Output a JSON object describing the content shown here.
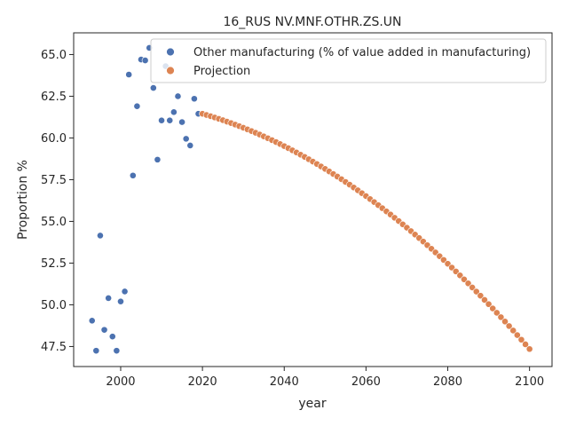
{
  "chart_data": {
    "type": "scatter",
    "title": "16_RUS NV.MNF.OTHR.ZS.UN",
    "xlabel": "year",
    "ylabel": "Proportion %",
    "xlim": [
      1988.5,
      2105.5
    ],
    "ylim": [
      46.3,
      66.3
    ],
    "xticks": [
      2000,
      2020,
      2040,
      2060,
      2080,
      2100
    ],
    "yticks": [
      47.5,
      50.0,
      52.5,
      55.0,
      57.5,
      60.0,
      62.5,
      65.0
    ],
    "grid": false,
    "legend_position": "top-right",
    "series": [
      {
        "name": "Other manufacturing (% of value added in manufacturing)",
        "color": "#4c72b0",
        "x": [
          1993,
          1994,
          1995,
          1996,
          1997,
          1998,
          1999,
          2000,
          2001,
          2002,
          2003,
          2004,
          2005,
          2006,
          2007,
          2008,
          2009,
          2010,
          2011,
          2012,
          2013,
          2014,
          2015,
          2016,
          2017,
          2018,
          2019
        ],
        "y": [
          49.05,
          47.25,
          54.15,
          48.5,
          50.4,
          48.1,
          47.25,
          50.2,
          50.8,
          63.8,
          57.75,
          61.9,
          64.7,
          64.65,
          65.4,
          63.0,
          58.7,
          61.05,
          64.3,
          61.05,
          61.55,
          62.5,
          60.95,
          59.95,
          59.55,
          62.35,
          61.45
        ]
      },
      {
        "name": "Projection",
        "color": "#dd8452",
        "x_start": 2020,
        "x_end": 2100,
        "y_start": 61.45,
        "y_end": 47.35
      }
    ]
  }
}
